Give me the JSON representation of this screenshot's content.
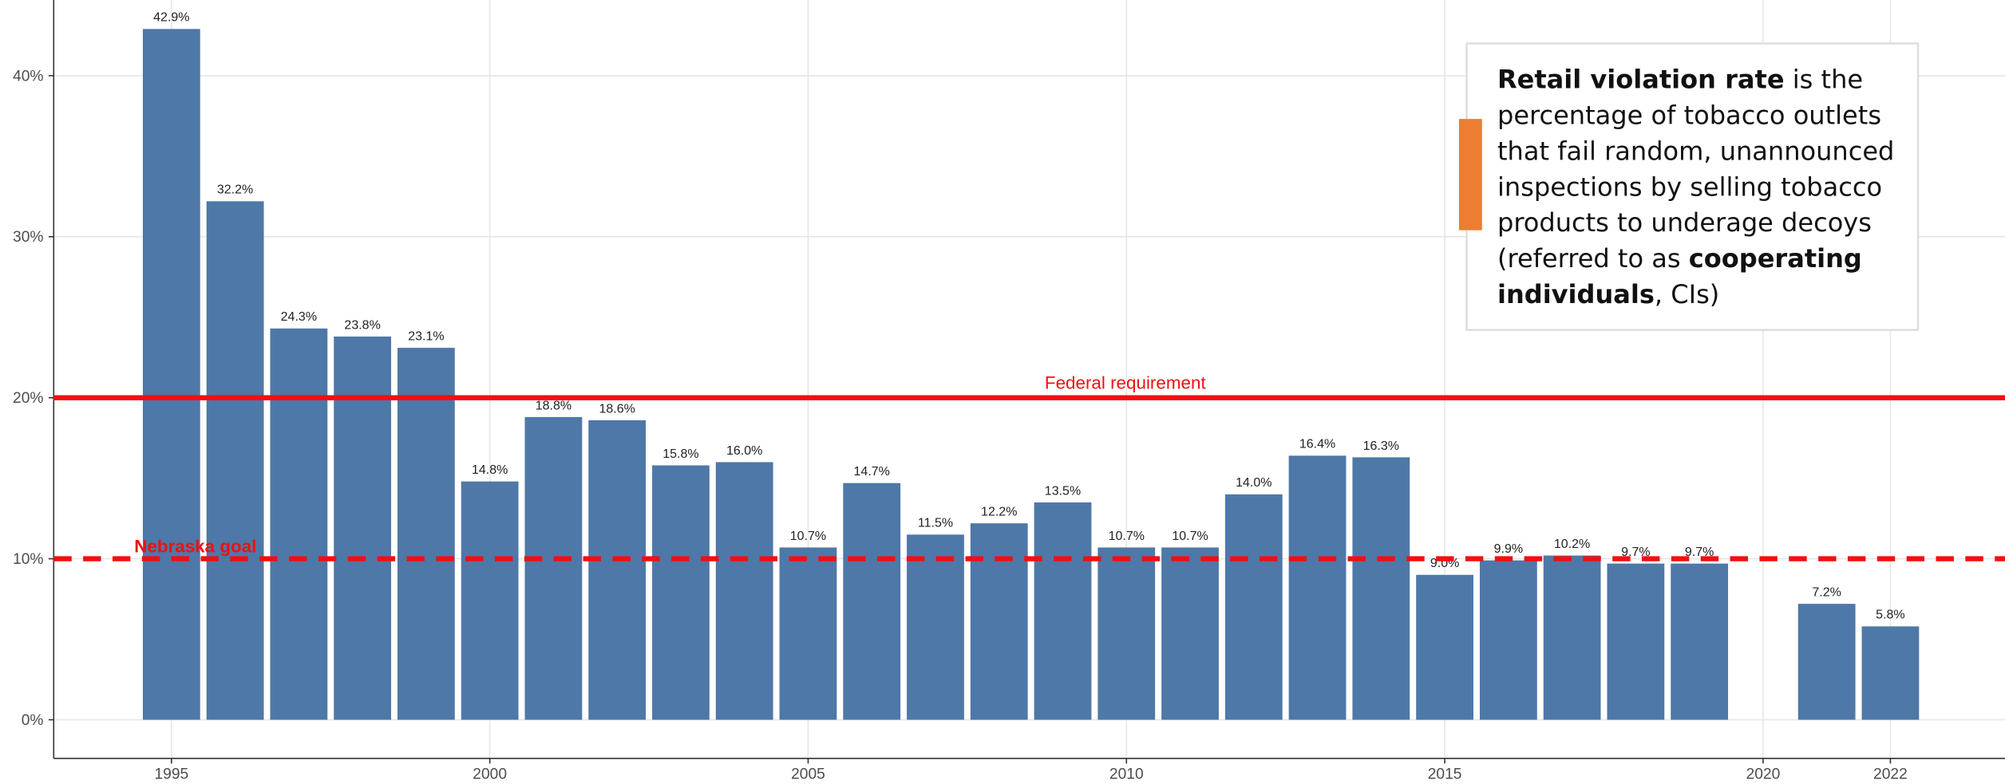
{
  "chart_data": {
    "type": "bar",
    "x": [
      1995,
      1996,
      1997,
      1998,
      1999,
      2000,
      2001,
      2002,
      2003,
      2004,
      2005,
      2006,
      2007,
      2008,
      2009,
      2010,
      2011,
      2012,
      2013,
      2014,
      2015,
      2016,
      2017,
      2018,
      2019,
      2020,
      2021,
      2022
    ],
    "values": [
      42.9,
      32.2,
      24.3,
      23.8,
      23.1,
      14.8,
      18.8,
      18.6,
      15.8,
      16.0,
      10.7,
      14.7,
      11.5,
      12.2,
      13.5,
      10.7,
      10.7,
      14.0,
      16.4,
      16.3,
      9.0,
      9.9,
      10.2,
      9.7,
      9.7,
      null,
      7.2,
      5.8
    ],
    "value_labels": [
      "42.9%",
      "32.2%",
      "24.3%",
      "23.8%",
      "23.1%",
      "14.8%",
      "18.8%",
      "18.6%",
      "15.8%",
      "16.0%",
      "10.7%",
      "14.7%",
      "11.5%",
      "12.2%",
      "13.5%",
      "10.7%",
      "10.7%",
      "14.0%",
      "16.4%",
      "16.3%",
      "9.0%",
      "9.9%",
      "10.2%",
      "9.7%",
      "9.7%",
      null,
      "7.2%",
      "5.8%"
    ],
    "color": "#4e78a7",
    "xlim": [
      1993.15,
      2023.8
    ],
    "xticks": [
      1995,
      2000,
      2005,
      2010,
      2015,
      2020,
      2022
    ],
    "ylim": [
      -2.4,
      44.7
    ],
    "yticks": [
      {
        "value": 0,
        "label": "0%"
      },
      {
        "value": 10,
        "label": "10%"
      },
      {
        "value": 20,
        "label": "20%"
      },
      {
        "value": 30,
        "label": "30%"
      },
      {
        "value": 40,
        "label": "40%"
      }
    ],
    "grid": true,
    "reference_lines": [
      {
        "value": 20,
        "label": "Federal requirement",
        "color": "#ee1111",
        "style": "solid"
      },
      {
        "value": 10,
        "label": "Nebraska goal",
        "color": "#ee1111",
        "style": "dashed"
      }
    ],
    "annotation": {
      "accent_color": "#ed7d31",
      "lines": [
        [
          {
            "text": "Retail violation rate",
            "bold": true
          },
          {
            "text": " is the",
            "bold": false
          }
        ],
        [
          {
            "text": "percentage of tobacco outlets",
            "bold": false
          }
        ],
        [
          {
            "text": "that fail random, unannounced",
            "bold": false
          }
        ],
        [
          {
            "text": "inspections by selling tobacco",
            "bold": false
          }
        ],
        [
          {
            "text": "products to underage decoys",
            "bold": false
          }
        ],
        [
          {
            "text": "(referred to as ",
            "bold": false
          },
          {
            "text": "cooperating",
            "bold": true
          }
        ],
        [
          {
            "text": "individuals",
            "bold": true
          },
          {
            "text": ", CIs)",
            "bold": false
          }
        ]
      ]
    }
  }
}
